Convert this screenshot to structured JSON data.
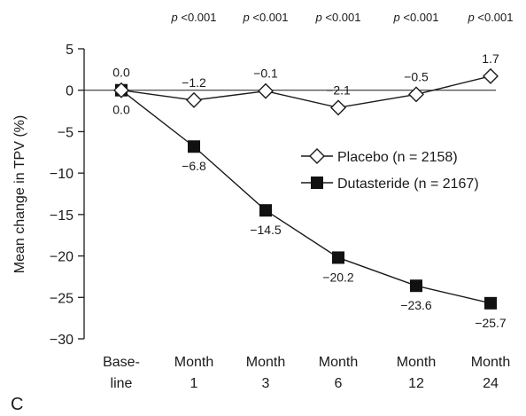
{
  "panel_label": "C",
  "chart_data": {
    "type": "line",
    "title": "",
    "xlabel": "",
    "ylabel": "Mean change in TPV (%)",
    "ylim": [
      -30,
      5
    ],
    "yticks": [
      5,
      0,
      -5,
      -10,
      -15,
      -20,
      -25,
      -30
    ],
    "categories": [
      {
        "line1": "Base-",
        "line2": "line"
      },
      {
        "line1": "Month",
        "line2": "1"
      },
      {
        "line1": "Month",
        "line2": "3"
      },
      {
        "line1": "Month",
        "line2": "6"
      },
      {
        "line1": "Month",
        "line2": "12"
      },
      {
        "line1": "Month",
        "line2": "24"
      }
    ],
    "p_values": [
      "",
      "p <0.001",
      "p <0.001",
      "p <0.001",
      "p <0.001",
      "p <0.001"
    ],
    "reference_line": 0,
    "grid": false,
    "legend_position": "right",
    "series": [
      {
        "name": "Placebo (n = 2158)",
        "marker": "open-diamond",
        "values": [
          0.0,
          -1.2,
          -0.1,
          -2.1,
          -0.5,
          1.7
        ],
        "labels": [
          "0.0",
          "−1.2",
          "−0.1",
          "−2.1",
          "−0.5",
          "1.7"
        ]
      },
      {
        "name": "Dutasteride (n = 2167)",
        "marker": "filled-square",
        "values": [
          0.0,
          -6.8,
          -14.5,
          -20.2,
          -23.6,
          -25.7
        ],
        "labels": [
          "0.0",
          "−6.8",
          "−14.5",
          "−20.2",
          "−23.6",
          "−25.7"
        ]
      }
    ]
  }
}
